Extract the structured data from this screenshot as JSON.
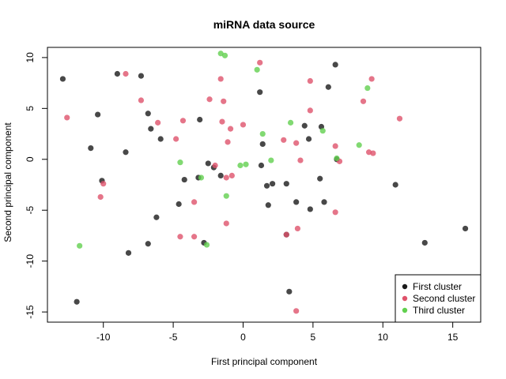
{
  "chart_data": {
    "type": "scatter",
    "title": "miRNA data source",
    "xlabel": "First principal component",
    "ylabel": "Second principal component",
    "xlim": [
      -14,
      17
    ],
    "ylim": [
      -16,
      11
    ],
    "xticks": [
      -10,
      -5,
      0,
      5,
      10,
      15
    ],
    "yticks": [
      -15,
      -10,
      -5,
      0,
      5,
      10
    ],
    "legend_position": "bottom-right",
    "grid": false,
    "series": [
      {
        "name": "First cluster",
        "color": "#1a1a1a",
        "points": [
          [
            -12.9,
            7.9
          ],
          [
            -9.0,
            8.4
          ],
          [
            -7.3,
            8.2
          ],
          [
            -10.4,
            4.4
          ],
          [
            -10.9,
            1.1
          ],
          [
            -8.4,
            0.7
          ],
          [
            -10.1,
            -2.1
          ],
          [
            -8.2,
            -9.2
          ],
          [
            -6.8,
            4.5
          ],
          [
            -6.6,
            3.0
          ],
          [
            -5.9,
            2.0
          ],
          [
            -6.2,
            -5.7
          ],
          [
            -6.8,
            -8.3
          ],
          [
            -4.6,
            -4.4
          ],
          [
            -4.2,
            -2.0
          ],
          [
            -3.1,
            3.9
          ],
          [
            -3.2,
            -1.8
          ],
          [
            -2.5,
            -0.4
          ],
          [
            -2.1,
            -0.8
          ],
          [
            -1.6,
            -1.6
          ],
          [
            -2.8,
            -8.2
          ],
          [
            -11.9,
            -14.0
          ],
          [
            1.2,
            6.6
          ],
          [
            1.4,
            1.5
          ],
          [
            1.3,
            -0.6
          ],
          [
            1.7,
            -2.6
          ],
          [
            2.1,
            -2.4
          ],
          [
            1.8,
            -4.5
          ],
          [
            3.1,
            -2.4
          ],
          [
            3.1,
            -7.4
          ],
          [
            3.3,
            -13.0
          ],
          [
            3.8,
            -4.2
          ],
          [
            4.4,
            3.3
          ],
          [
            4.7,
            2.0
          ],
          [
            4.8,
            -4.9
          ],
          [
            5.5,
            -1.9
          ],
          [
            5.6,
            3.2
          ],
          [
            5.8,
            -4.2
          ],
          [
            6.1,
            7.1
          ],
          [
            6.6,
            9.3
          ],
          [
            6.7,
            0.0
          ],
          [
            10.9,
            -2.5
          ],
          [
            13.0,
            -8.2
          ],
          [
            15.9,
            -6.8
          ]
        ]
      },
      {
        "name": "Second cluster",
        "color": "#df536b",
        "points": [
          [
            -12.6,
            4.1
          ],
          [
            -8.4,
            8.4
          ],
          [
            -10.2,
            -3.7
          ],
          [
            -10.0,
            -2.4
          ],
          [
            -7.3,
            5.8
          ],
          [
            -6.1,
            3.6
          ],
          [
            -4.8,
            2.0
          ],
          [
            -4.3,
            3.8
          ],
          [
            -3.5,
            -4.2
          ],
          [
            -3.5,
            -7.6
          ],
          [
            -4.5,
            -7.6
          ],
          [
            -2.4,
            5.9
          ],
          [
            -1.6,
            7.9
          ],
          [
            -1.4,
            5.7
          ],
          [
            -1.5,
            3.7
          ],
          [
            -1.1,
            1.7
          ],
          [
            -1.2,
            -1.8
          ],
          [
            -0.8,
            -1.6
          ],
          [
            -0.9,
            3.0
          ],
          [
            -1.2,
            -6.3
          ],
          [
            -2.0,
            -0.6
          ],
          [
            0.0,
            3.4
          ],
          [
            1.2,
            9.5
          ],
          [
            2.9,
            1.9
          ],
          [
            3.8,
            1.6
          ],
          [
            4.1,
            -0.1
          ],
          [
            4.8,
            4.8
          ],
          [
            4.8,
            7.7
          ],
          [
            3.1,
            -7.4
          ],
          [
            3.9,
            -6.8
          ],
          [
            3.8,
            -14.9
          ],
          [
            6.6,
            1.3
          ],
          [
            6.6,
            -5.2
          ],
          [
            6.9,
            -0.2
          ],
          [
            8.6,
            5.7
          ],
          [
            9.0,
            0.7
          ],
          [
            9.3,
            0.6
          ],
          [
            9.2,
            7.9
          ],
          [
            11.2,
            4.0
          ]
        ]
      },
      {
        "name": "Third cluster",
        "color": "#61d04f",
        "points": [
          [
            -11.7,
            -8.5
          ],
          [
            -4.5,
            -0.3
          ],
          [
            -3.0,
            -1.8
          ],
          [
            -2.6,
            -8.4
          ],
          [
            -1.6,
            10.4
          ],
          [
            -1.3,
            10.2
          ],
          [
            -1.2,
            -3.6
          ],
          [
            -0.2,
            -0.6
          ],
          [
            0.2,
            -0.5
          ],
          [
            1.0,
            8.8
          ],
          [
            1.4,
            2.5
          ],
          [
            2.0,
            -0.1
          ],
          [
            3.4,
            3.6
          ],
          [
            5.7,
            2.8
          ],
          [
            6.7,
            0.1
          ],
          [
            8.3,
            1.4
          ],
          [
            8.9,
            7.0
          ]
        ]
      }
    ]
  }
}
